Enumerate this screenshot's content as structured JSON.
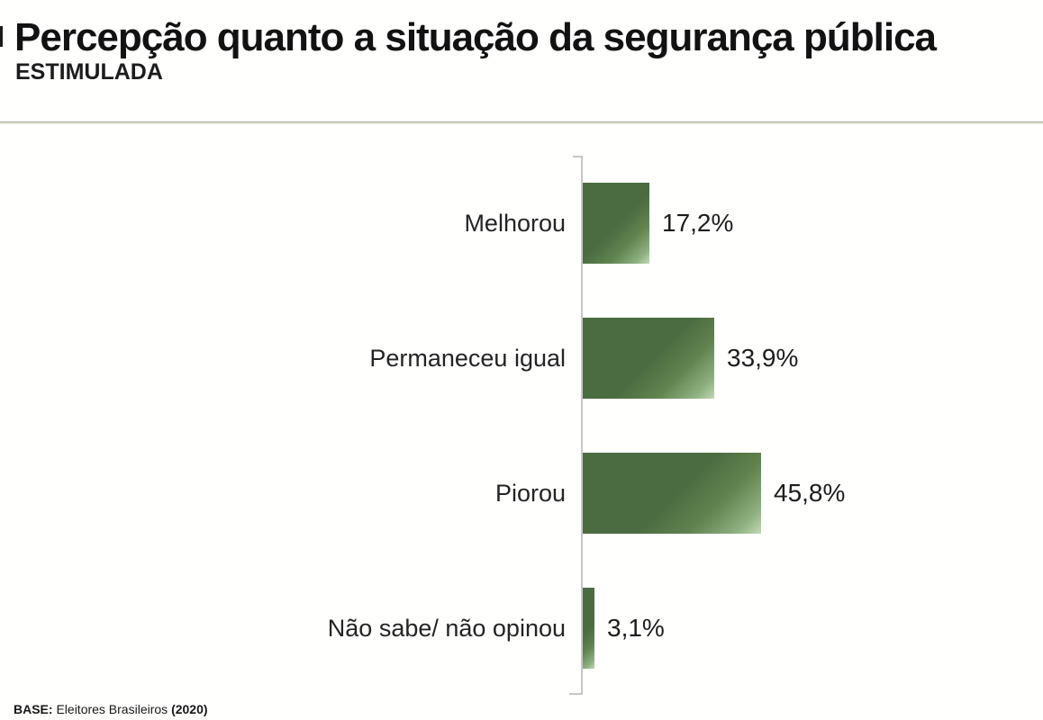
{
  "header": {
    "title": "Percepção quanto a situação da segurança pública",
    "subtitle": "ESTIMULADA"
  },
  "footer": {
    "base_label": "BASE:",
    "base_text": "Eleitores Brasileiros",
    "base_year": "(2020)"
  },
  "chart_data": {
    "type": "bar",
    "orientation": "horizontal",
    "title": "Percepção quanto a situação da segurança pública",
    "subtitle": "ESTIMULADA",
    "categories": [
      "Melhorou",
      "Permaneceu igual",
      "Piorou",
      "Não sabe/ não opinou"
    ],
    "values": [
      17.2,
      33.9,
      45.8,
      3.1
    ],
    "value_labels": [
      "17,2%",
      "33,9%",
      "45,8%",
      "3,1%"
    ],
    "xlabel": "",
    "ylabel": "",
    "xlim": [
      0,
      50
    ],
    "grid": false,
    "legend": false,
    "data_labels_position": "outside-end",
    "bar_color_dark": "#4b6c41",
    "bar_color_light": "#c2d9b5",
    "axis_color": "#c7c7c7",
    "divider_color": "#a7aa9d"
  }
}
